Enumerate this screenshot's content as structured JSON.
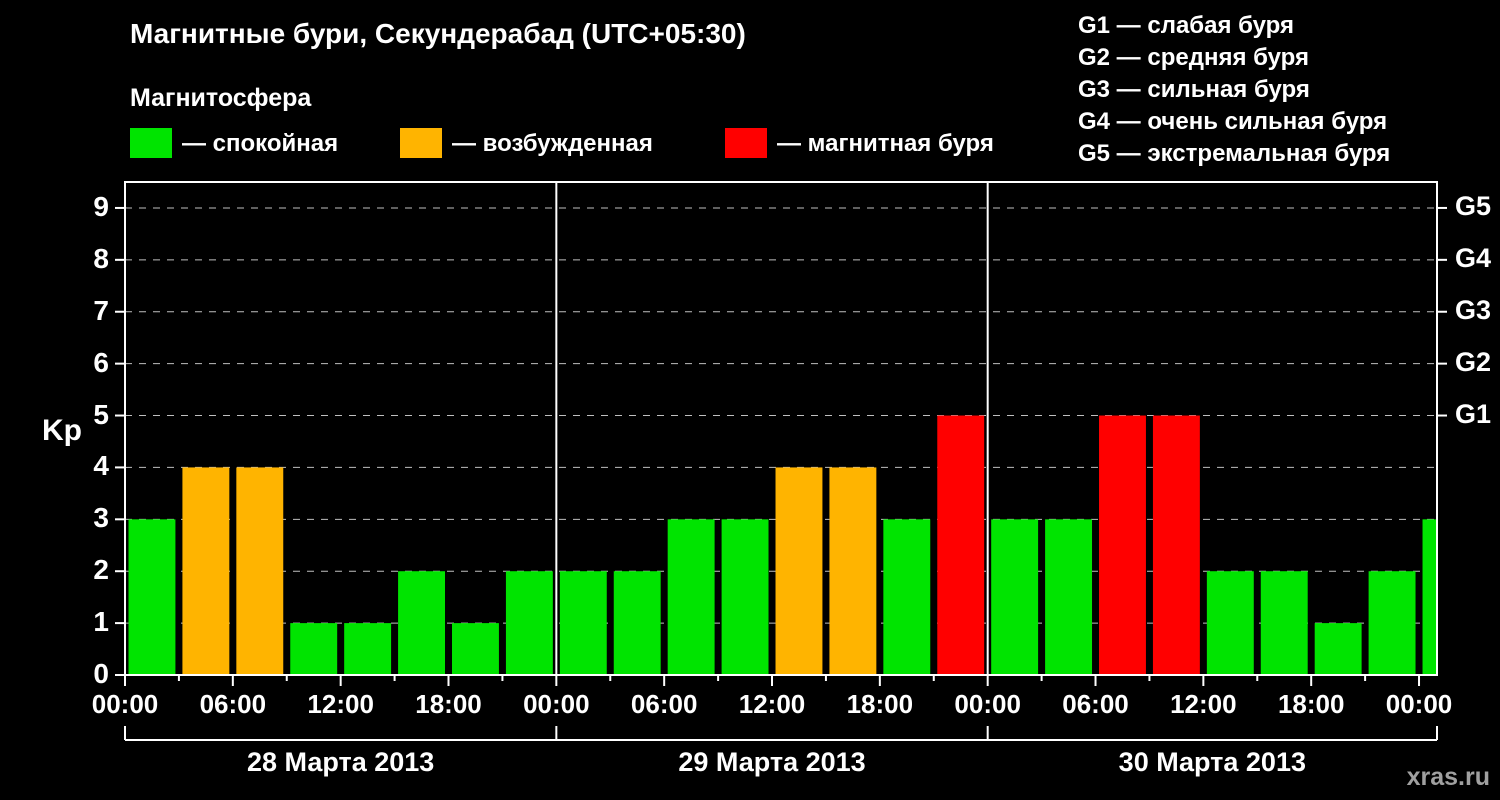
{
  "title": "Магнитные бури, Секундерабад (UTC+05:30)",
  "watermark": "xras.ru",
  "magnetosphere": {
    "title": "Магнитосфера",
    "items": [
      {
        "key": "quiet",
        "label": "— спокойная",
        "color": "#00e400"
      },
      {
        "key": "unsettled",
        "label": "— возбужденная",
        "color": "#ffb400"
      },
      {
        "key": "storm",
        "label": "— магнитная буря",
        "color": "#ff0000"
      }
    ]
  },
  "storm_scale_legend": [
    "G1 — слабая буря",
    "G2 — средняя буря",
    "G3 — сильная буря",
    "G4 — очень сильная буря",
    "G5 — экстремальная буря"
  ],
  "chart_data": {
    "type": "bar",
    "title": "Магнитные бури, Секундерабад (UTC+05:30)",
    "ylabel": "Kp",
    "ylim": [
      0,
      9.5
    ],
    "yticks": [
      0,
      1,
      2,
      3,
      4,
      5,
      6,
      7,
      8,
      9
    ],
    "right_axis": [
      {
        "value": 5,
        "label": "G1"
      },
      {
        "value": 6,
        "label": "G2"
      },
      {
        "value": 7,
        "label": "G3"
      },
      {
        "value": 8,
        "label": "G4"
      },
      {
        "value": 9,
        "label": "G5"
      }
    ],
    "x_tick_hours": [
      0,
      6,
      12,
      18,
      24,
      30,
      36,
      42,
      48,
      54,
      60,
      66,
      72
    ],
    "x_tick_labels": [
      "00:00",
      "06:00",
      "12:00",
      "18:00",
      "00:00",
      "06:00",
      "12:00",
      "18:00",
      "00:00",
      "06:00",
      "12:00",
      "18:00",
      "00:00"
    ],
    "hours_span": 73,
    "interval_hours": 3,
    "days": [
      {
        "date": "28 Марта 2013",
        "kp": [
          3,
          4,
          4,
          1,
          1,
          2,
          1,
          2
        ]
      },
      {
        "date": "29 Марта 2013",
        "kp": [
          2,
          2,
          3,
          3,
          4,
          4,
          3,
          5
        ]
      },
      {
        "date": "30 Марта 2013",
        "kp": [
          3,
          3,
          5,
          5,
          2,
          2,
          1,
          2
        ]
      }
    ],
    "next_day_partial_kp": 3,
    "color_thresholds": {
      "quiet_max": 3,
      "unsettled_max": 4
    },
    "colors": {
      "quiet": "#00e400",
      "unsettled": "#ffb400",
      "storm": "#ff0000"
    },
    "grid": true,
    "legend_position": "top",
    "background": "#000000",
    "axis_color": "#ffffff"
  }
}
